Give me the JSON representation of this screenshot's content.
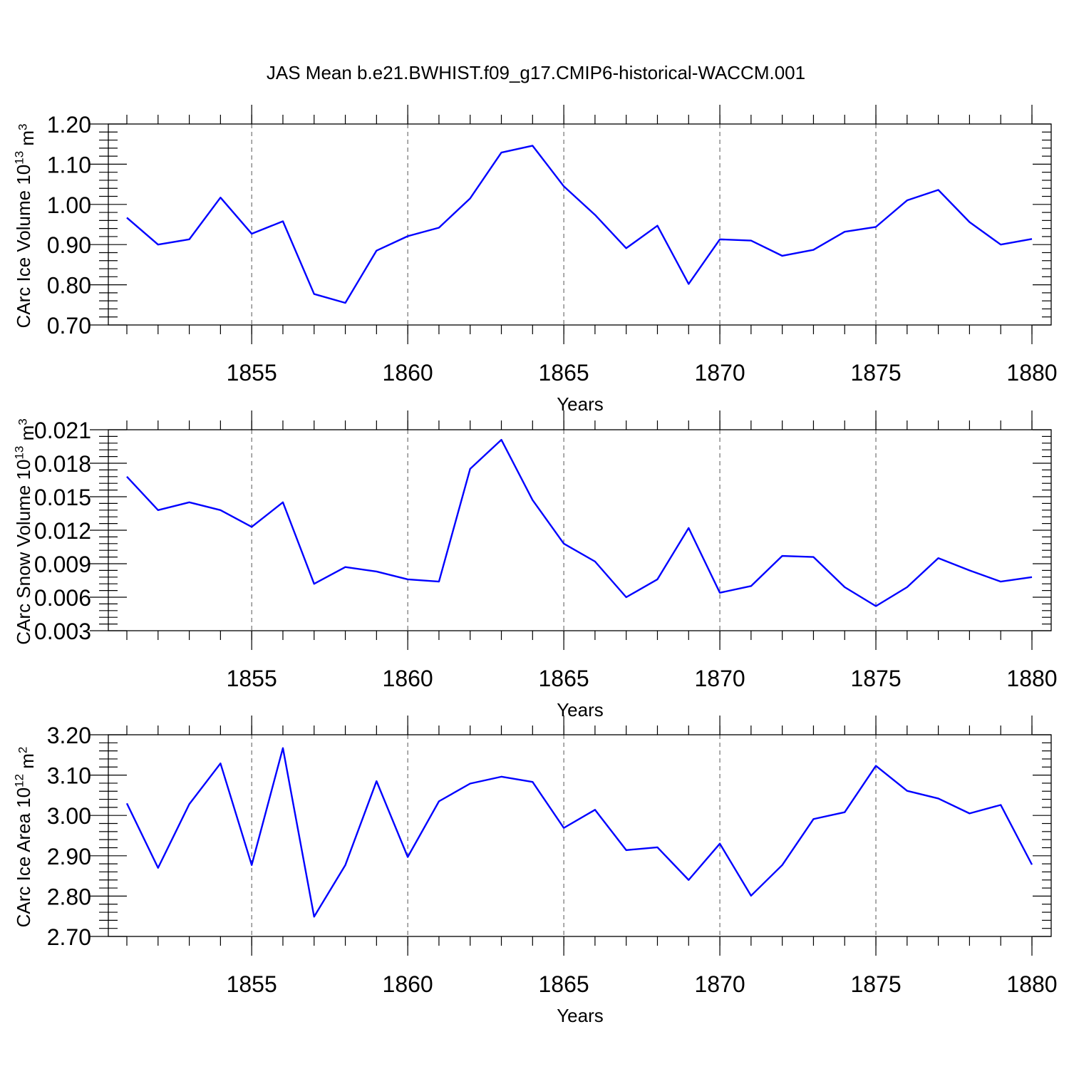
{
  "figure_title": "JAS Mean b.e21.BWHIST.f09_g17.CMIP6-historical-WACCM.001",
  "line_color": "#0000ff",
  "chart_data": [
    {
      "type": "line",
      "title": "JAS Mean b.e21.BWHIST.f09_g17.CMIP6-historical-WACCM.001",
      "ylabel_text": "CArc Ice Volume 10",
      "ylabel_exp": "13",
      "ylabel_unit": "m",
      "ylabel_unit_exp": "3",
      "xlabel": "Years",
      "xlim": [
        1851,
        1880
      ],
      "ylim": [
        0.7,
        1.2
      ],
      "yticks": [
        0.7,
        0.8,
        0.9,
        1.0,
        1.1,
        1.2
      ],
      "ytick_labels": [
        "0.70",
        "0.80",
        "0.90",
        "1.00",
        "1.10",
        "1.20"
      ],
      "xticks": [
        1855,
        1860,
        1865,
        1870,
        1875,
        1880
      ],
      "xtick_labels": [
        "1855",
        "1860",
        "1865",
        "1870",
        "1875",
        "1880"
      ],
      "grid": "vertical-dashed",
      "x": [
        1851,
        1852,
        1853,
        1854,
        1855,
        1856,
        1857,
        1858,
        1859,
        1860,
        1861,
        1862,
        1863,
        1864,
        1865,
        1866,
        1867,
        1868,
        1869,
        1870,
        1871,
        1872,
        1873,
        1874,
        1875,
        1876,
        1877,
        1878,
        1879,
        1880
      ],
      "series": [
        {
          "name": "CArc Ice Volume",
          "values": [
            0.967,
            0.9,
            0.913,
            1.017,
            0.927,
            0.958,
            0.777,
            0.755,
            0.885,
            0.921,
            0.942,
            1.015,
            1.129,
            1.146,
            1.045,
            0.974,
            0.891,
            0.947,
            0.802,
            0.913,
            0.91,
            0.872,
            0.887,
            0.932,
            0.944,
            1.01,
            1.036,
            0.956,
            0.9,
            0.914
          ]
        }
      ]
    },
    {
      "type": "line",
      "ylabel_text": "CArc Snow Volume 10",
      "ylabel_exp": "13",
      "ylabel_unit": "m",
      "ylabel_unit_exp": "3",
      "xlabel": "Years",
      "xlim": [
        1851,
        1880
      ],
      "ylim": [
        0.003,
        0.021
      ],
      "yticks": [
        0.003,
        0.006,
        0.009,
        0.012,
        0.015,
        0.018,
        0.021
      ],
      "ytick_labels": [
        "0.003",
        "0.006",
        "0.009",
        "0.012",
        "0.015",
        "0.018",
        "0.021"
      ],
      "xticks": [
        1855,
        1860,
        1865,
        1870,
        1875,
        1880
      ],
      "xtick_labels": [
        "1855",
        "1860",
        "1865",
        "1870",
        "1875",
        "1880"
      ],
      "grid": "vertical-dashed",
      "x": [
        1851,
        1852,
        1853,
        1854,
        1855,
        1856,
        1857,
        1858,
        1859,
        1860,
        1861,
        1862,
        1863,
        1864,
        1865,
        1866,
        1867,
        1868,
        1869,
        1870,
        1871,
        1872,
        1873,
        1874,
        1875,
        1876,
        1877,
        1878,
        1879,
        1880
      ],
      "series": [
        {
          "name": "CArc Snow Volume",
          "values": [
            0.0168,
            0.0138,
            0.0145,
            0.0138,
            0.0123,
            0.0145,
            0.0072,
            0.0087,
            0.0083,
            0.0076,
            0.0074,
            0.0175,
            0.0201,
            0.0147,
            0.0108,
            0.0092,
            0.006,
            0.0076,
            0.0122,
            0.0064,
            0.007,
            0.0097,
            0.0096,
            0.0069,
            0.0052,
            0.0069,
            0.0095,
            0.0084,
            0.0074,
            0.0078
          ]
        }
      ]
    },
    {
      "type": "line",
      "ylabel_text": "CArc Ice Area 10",
      "ylabel_exp": "12",
      "ylabel_unit": "m",
      "ylabel_unit_exp": "2",
      "xlabel": "Years",
      "xlim": [
        1851,
        1880
      ],
      "ylim": [
        2.7,
        3.2
      ],
      "yticks": [
        2.7,
        2.8,
        2.9,
        3.0,
        3.1,
        3.2
      ],
      "ytick_labels": [
        "2.70",
        "2.80",
        "2.90",
        "3.00",
        "3.10",
        "3.20"
      ],
      "xticks": [
        1855,
        1860,
        1865,
        1870,
        1875,
        1880
      ],
      "xtick_labels": [
        "1855",
        "1860",
        "1865",
        "1870",
        "1875",
        "1880"
      ],
      "grid": "vertical-dashed",
      "x": [
        1851,
        1852,
        1853,
        1854,
        1855,
        1856,
        1857,
        1858,
        1859,
        1860,
        1861,
        1862,
        1863,
        1864,
        1865,
        1866,
        1867,
        1868,
        1869,
        1870,
        1871,
        1872,
        1873,
        1874,
        1875,
        1876,
        1877,
        1878,
        1879,
        1880
      ],
      "series": [
        {
          "name": "CArc Ice Area",
          "values": [
            3.03,
            2.87,
            3.028,
            3.129,
            2.877,
            3.167,
            2.749,
            2.877,
            3.085,
            2.897,
            3.035,
            3.079,
            3.096,
            3.083,
            2.969,
            3.014,
            2.914,
            2.921,
            2.84,
            2.93,
            2.801,
            2.877,
            2.991,
            3.008,
            3.123,
            3.061,
            3.042,
            3.005,
            3.026,
            2.878
          ]
        }
      ]
    }
  ]
}
